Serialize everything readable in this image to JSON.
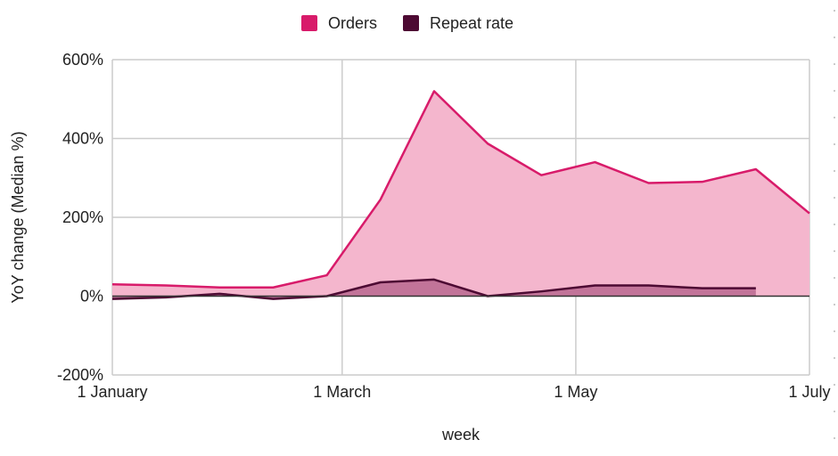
{
  "chart_data": {
    "type": "area",
    "x_axis": {
      "label": "week",
      "range": [
        "2020-01-01",
        "2020-07-01"
      ],
      "ticks": [
        {
          "date": "2020-01-01",
          "label": "1 January"
        },
        {
          "date": "2020-03-01",
          "label": "1 March"
        },
        {
          "date": "2020-05-01",
          "label": "1 May"
        },
        {
          "date": "2020-07-01",
          "label": "1 July"
        }
      ]
    },
    "y_axis": {
      "label": "YoY change (Median %)",
      "range": [
        -200,
        600
      ],
      "ticks": [
        {
          "value": 600,
          "label": "600%"
        },
        {
          "value": 400,
          "label": "400%"
        },
        {
          "value": 200,
          "label": "200%"
        },
        {
          "value": 0,
          "label": "0%"
        },
        {
          "value": -200,
          "label": "-200%"
        }
      ]
    },
    "grid": true,
    "legend_position": "top",
    "series": [
      {
        "name": "Orders",
        "color": "#d81b6a",
        "fill": "#f4b6cd",
        "points": [
          {
            "x": "2020-01-01",
            "y": 30
          },
          {
            "x": "2020-01-15",
            "y": 27
          },
          {
            "x": "2020-01-29",
            "y": 22
          },
          {
            "x": "2020-02-12",
            "y": 22
          },
          {
            "x": "2020-02-26",
            "y": 53
          },
          {
            "x": "2020-03-11",
            "y": 245
          },
          {
            "x": "2020-03-25",
            "y": 520
          },
          {
            "x": "2020-04-08",
            "y": 387
          },
          {
            "x": "2020-04-22",
            "y": 307
          },
          {
            "x": "2020-05-06",
            "y": 340
          },
          {
            "x": "2020-05-20",
            "y": 287
          },
          {
            "x": "2020-06-03",
            "y": 290
          },
          {
            "x": "2020-06-17",
            "y": 322
          },
          {
            "x": "2020-07-01",
            "y": 210
          }
        ]
      },
      {
        "name": "Repeat rate",
        "color": "#4d0a33",
        "fill": "#b9698f",
        "points": [
          {
            "x": "2020-01-01",
            "y": -7
          },
          {
            "x": "2020-01-15",
            "y": -3
          },
          {
            "x": "2020-01-29",
            "y": 6
          },
          {
            "x": "2020-02-12",
            "y": -7
          },
          {
            "x": "2020-02-26",
            "y": 0
          },
          {
            "x": "2020-03-11",
            "y": 35
          },
          {
            "x": "2020-03-25",
            "y": 42
          },
          {
            "x": "2020-04-08",
            "y": 0
          },
          {
            "x": "2020-04-22",
            "y": 12
          },
          {
            "x": "2020-05-06",
            "y": 27
          },
          {
            "x": "2020-05-20",
            "y": 27
          },
          {
            "x": "2020-06-03",
            "y": 20
          },
          {
            "x": "2020-06-17",
            "y": 20
          }
        ]
      }
    ]
  }
}
